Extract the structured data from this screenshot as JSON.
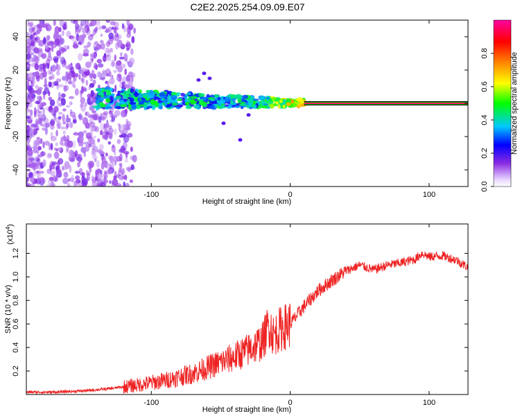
{
  "title": "C2E2.2025.254.09.09.E07",
  "chart_data": [
    {
      "type": "heatmap",
      "xlabel": "Height of straight line (km)",
      "ylabel": "Frequency (Hz)",
      "xlim": [
        -190,
        128
      ],
      "ylim": [
        -50,
        50
      ],
      "x_ticks": [
        -100,
        0,
        100
      ],
      "x_tick_labels": [
        "-100",
        "0",
        "100"
      ],
      "y_ticks": [
        -40,
        -20,
        0,
        20,
        40
      ],
      "y_tick_labels": [
        "-40",
        "-20",
        "0",
        "20",
        "40"
      ],
      "colorbar": {
        "label": "Normalized spectral amplitude",
        "range": [
          0,
          1
        ],
        "ticks": [
          0.0,
          0.2,
          0.4,
          0.6,
          0.8
        ],
        "tick_labels": [
          "0.0",
          "0.2",
          "0.4",
          "0.6",
          "0.8"
        ],
        "colors": [
          "#e8d8ff",
          "#8a2be2",
          "#0000ff",
          "#00c8ff",
          "#00ff00",
          "#ffff00",
          "#ff8000",
          "#ff0000",
          "#ff00a0"
        ]
      },
      "features": [
        {
          "name": "scattered noise",
          "x_range": [
            -190,
            -112
          ],
          "y_range": [
            -50,
            50
          ],
          "amplitude": 0.2
        },
        {
          "name": "spectral band",
          "x_range": [
            -140,
            10
          ],
          "y_range": [
            -6,
            8
          ],
          "amplitude": 0.45
        },
        {
          "name": "steady line",
          "x_range": [
            10,
            128
          ],
          "y": 0,
          "amplitude": 0.95
        }
      ]
    },
    {
      "type": "line",
      "xlabel": "Height of straight line (km)",
      "ylabel": "SNR (10 * v/v)",
      "y_multiplier_label": "(x10",
      "y_multiplier_exponent": "4",
      "xlim": [
        -190,
        128
      ],
      "ylim": [
        0,
        1.45
      ],
      "x_ticks": [
        -100,
        0,
        100
      ],
      "x_tick_labels": [
        "-100",
        "0",
        "100"
      ],
      "y_ticks": [
        0.2,
        0.4,
        0.6,
        0.8,
        1.0,
        1.2
      ],
      "y_tick_labels": [
        "0.2",
        "0.4",
        "0.6",
        "0.8",
        "1.0",
        "1.2"
      ],
      "series": [
        {
          "name": "SNR",
          "color": "#ee2222",
          "x": [
            -190,
            -170,
            -150,
            -130,
            -110,
            -90,
            -70,
            -55,
            -40,
            -30,
            -20,
            -15,
            -12,
            -8,
            0,
            10,
            20,
            30,
            40,
            50,
            60,
            70,
            80,
            90,
            95,
            100,
            110,
            120,
            128
          ],
          "y": [
            0.02,
            0.02,
            0.03,
            0.05,
            0.08,
            0.12,
            0.18,
            0.25,
            0.32,
            0.38,
            0.45,
            0.6,
            0.5,
            0.55,
            0.6,
            0.75,
            0.88,
            0.97,
            1.05,
            1.1,
            1.06,
            1.1,
            1.12,
            1.15,
            1.2,
            1.17,
            1.18,
            1.14,
            1.08
          ]
        }
      ]
    }
  ]
}
